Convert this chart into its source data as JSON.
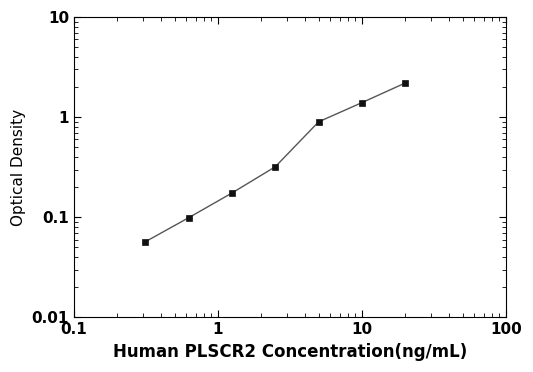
{
  "x_values": [
    0.313,
    0.625,
    1.25,
    2.5,
    5.0,
    10.0,
    20.0
  ],
  "y_values": [
    0.057,
    0.099,
    0.175,
    0.32,
    0.9,
    1.4,
    2.2
  ],
  "xlabel": "Human PLSCR2 Concentration(ng/mL)",
  "ylabel": "Optical Density",
  "xlim": [
    0.1,
    100
  ],
  "ylim": [
    0.01,
    10
  ],
  "line_color": "#555555",
  "marker": "s",
  "marker_color": "#111111",
  "marker_size": 5,
  "line_width": 1.0,
  "background_color": "#ffffff",
  "xlabel_fontsize": 12,
  "ylabel_fontsize": 11,
  "tick_label_fontweight": "bold",
  "tick_label_fontsize": 11
}
